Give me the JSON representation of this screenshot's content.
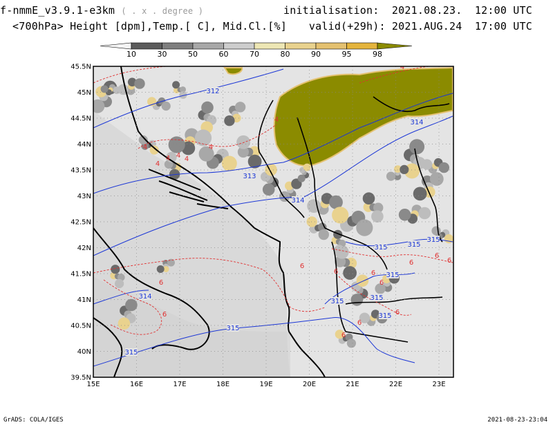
{
  "header": {
    "model": "f-nmmE_v3.9.1-e3km",
    "model_unit": "( . x . degree )",
    "variables": "<700hPa> Height [dpm],Temp.[ C], Mid.Cl.[%]",
    "init_label": "initialisation:",
    "init_value": "2021.08.23.  12:00 UTC",
    "valid_label": "valid(+29h):",
    "valid_value": "2021.AUG.24  17:00 UTC"
  },
  "colorbar": {
    "ticks": [
      "10",
      "30",
      "50",
      "60",
      "70",
      "80",
      "90",
      "95",
      "98"
    ],
    "colors": [
      "#f4f4f4",
      "#5c5c5c",
      "#7f7f7f",
      "#a8a8a8",
      "#cdcdcd",
      "#ede6b4",
      "#e9d28e",
      "#e4c170",
      "#e4b43c",
      "#8b8b00"
    ]
  },
  "map": {
    "lat_labels": [
      "45.5N",
      "45N",
      "44.5N",
      "44N",
      "43.5N",
      "43N",
      "42.5N",
      "42N",
      "41.5N",
      "41N",
      "40.5N",
      "40N",
      "39.5N"
    ],
    "lon_labels": [
      "15E",
      "16E",
      "17E",
      "18E",
      "19E",
      "20E",
      "21E",
      "22E",
      "23E"
    ],
    "height_labels": [
      "312",
      "313",
      "314",
      "314",
      "315",
      "315",
      "315",
      "315",
      "315",
      "315",
      "315",
      "315",
      "315",
      "314"
    ],
    "temp_labels": [
      "4",
      "4",
      "4",
      "4",
      "4",
      "4",
      "4",
      "4",
      "6",
      "6",
      "6",
      "6",
      "6",
      "6",
      "6",
      "6",
      "6",
      "6",
      "6",
      "6"
    ],
    "colors": {
      "land": "#e4e4e4",
      "height_contour": "#1c37d6",
      "temp_contour": "#e03030",
      "cloud_high": "#8b8b00",
      "coast": "#000000"
    }
  },
  "footer": {
    "left": "GrADS: COLA/IGES",
    "right": "2021-08-23-23:04"
  }
}
